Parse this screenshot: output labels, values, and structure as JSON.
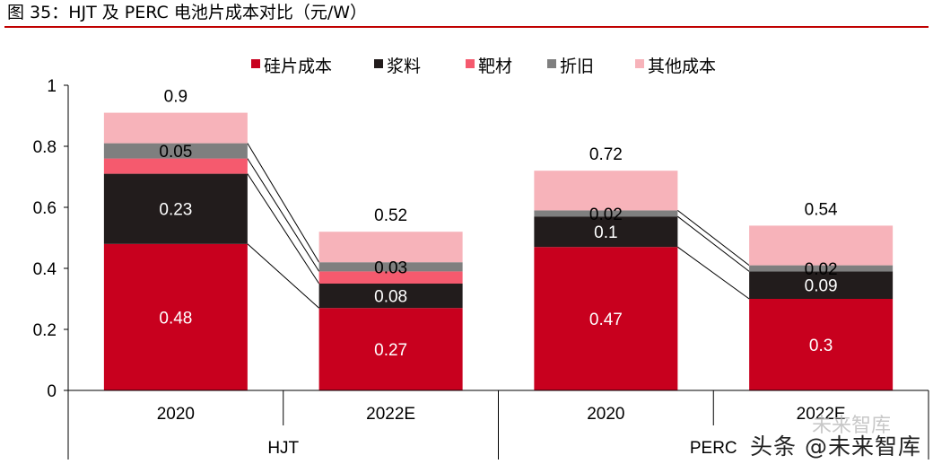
{
  "figure": {
    "title": "图 35：HJT 及 PERC 电池片成本对比（元/W）"
  },
  "colors": {
    "silicon": "#c8001e",
    "paste": "#221c1c",
    "target": "#f55a6e",
    "depreciation": "#7f7f7f",
    "other": "#f7b3ba",
    "connector": "#000000",
    "title_rule": "#c00000"
  },
  "chart_data": {
    "type": "bar",
    "stacked": true,
    "groups": [
      "HJT",
      "PERC"
    ],
    "categories": [
      "2020",
      "2022E",
      "2020",
      "2022E"
    ],
    "category_group": [
      "HJT",
      "HJT",
      "PERC",
      "PERC"
    ],
    "series": [
      {
        "name": "硅片成本",
        "key": "silicon",
        "values": [
          0.48,
          0.27,
          0.47,
          0.3
        ]
      },
      {
        "name": "浆料",
        "key": "paste",
        "values": [
          0.23,
          0.08,
          0.1,
          0.09
        ]
      },
      {
        "name": "靶材",
        "key": "target",
        "values": [
          0.05,
          0.04,
          0.0,
          0.0
        ]
      },
      {
        "name": "折旧",
        "key": "depreciation",
        "values": [
          0.05,
          0.03,
          0.02,
          0.02
        ]
      },
      {
        "name": "其他成本",
        "key": "other",
        "values": [
          0.1,
          0.1,
          0.13,
          0.13
        ]
      }
    ],
    "data_labels": [
      [
        "0.48",
        "0.23",
        "",
        "0.05",
        ""
      ],
      [
        "0.27",
        "0.08",
        "",
        "0.03",
        ""
      ],
      [
        "0.47",
        "0.1",
        "",
        "0.02",
        ""
      ],
      [
        "0.3",
        "0.09",
        "",
        "0.02",
        ""
      ]
    ],
    "totals": [
      "0.9",
      "0.52",
      "0.72",
      "0.54"
    ],
    "ylim": [
      0,
      1
    ],
    "yticks": [
      0,
      0.2,
      0.4,
      0.6,
      0.8,
      1
    ],
    "ytick_labels": [
      "0",
      "0.2",
      "0.4",
      "0.6",
      "0.8",
      "1"
    ],
    "legend_position": "top-center",
    "grid": false,
    "connector_lines": true
  },
  "watermark": {
    "text": "头条 @未来智库",
    "ghost_text": "未来智库"
  }
}
